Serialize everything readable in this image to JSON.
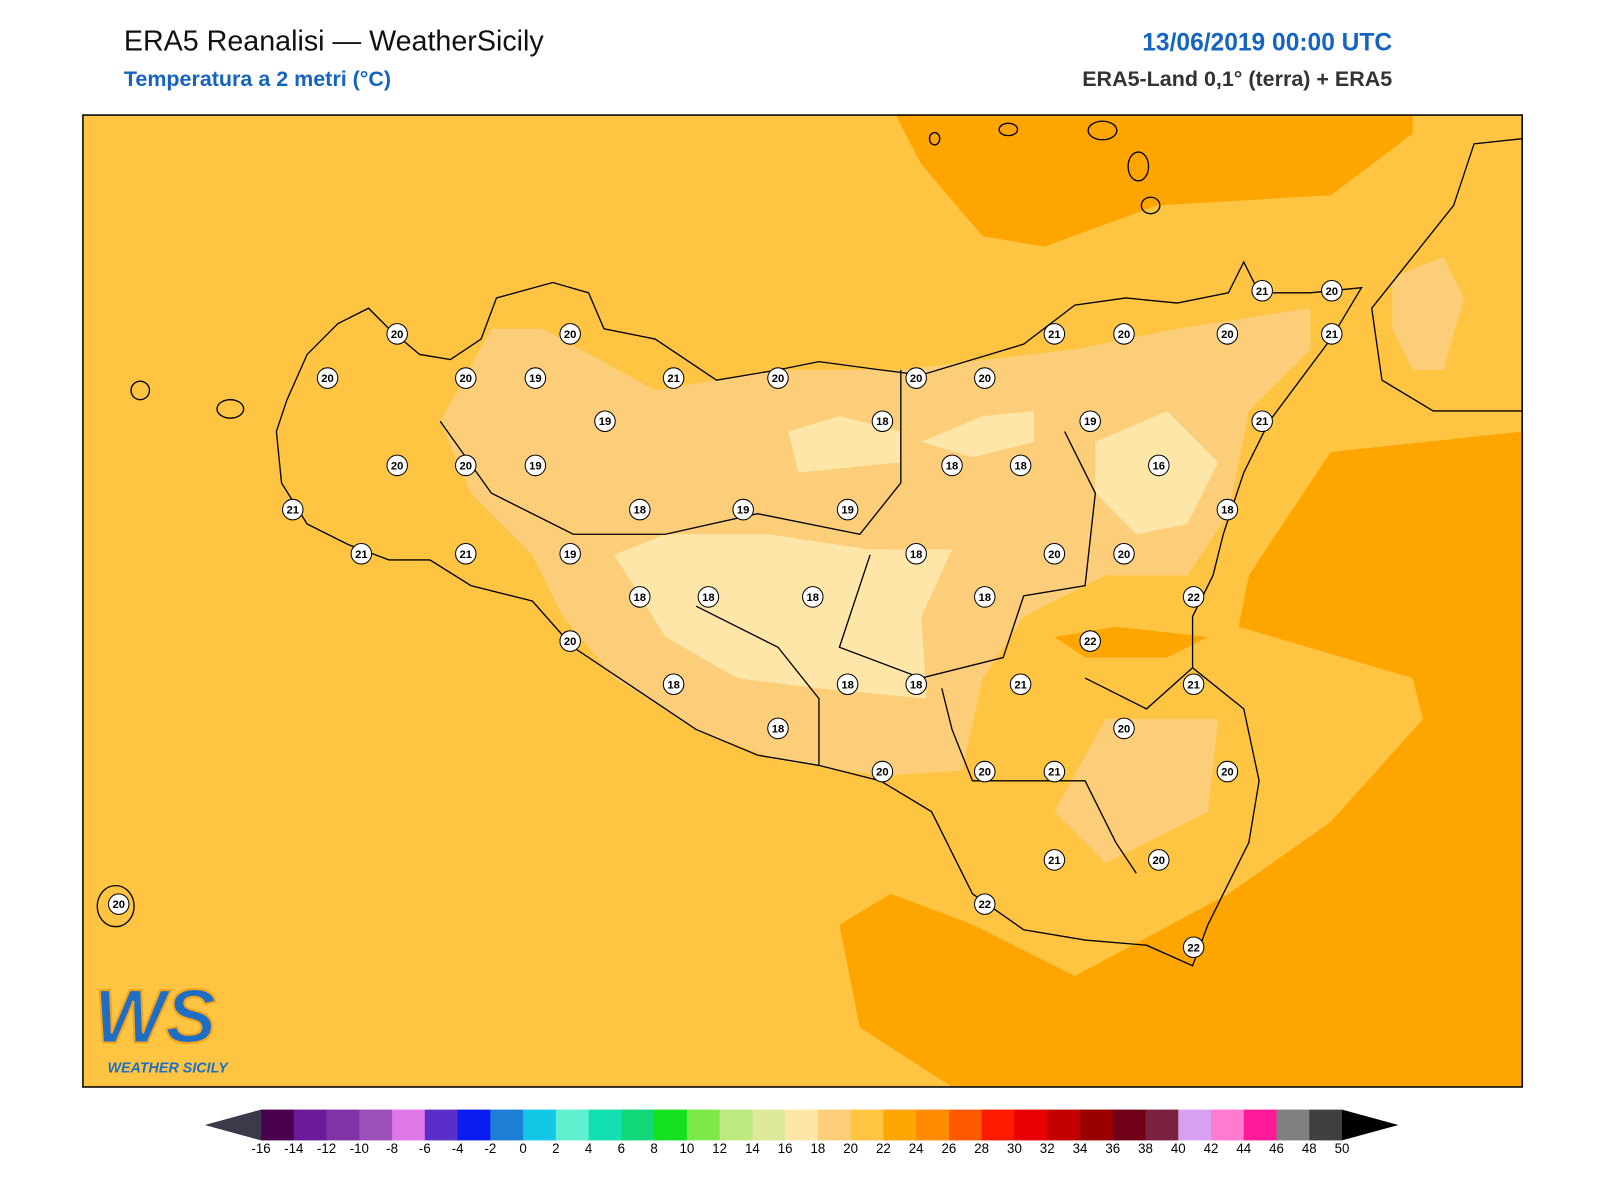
{
  "header": {
    "title": "ERA5 Reanalisi — WeatherSicily",
    "subtitle": "Temperatura a 2 metri (°C)",
    "date": "13/06/2019 00:00 UTC",
    "source": "ERA5-Land 0,1° (terra) + ERA5"
  },
  "stations": [
    20,
    20,
    20,
    20,
    19,
    21,
    20,
    19,
    20,
    20,
    19,
    21,
    21,
    21,
    19,
    18,
    19,
    19,
    18,
    20,
    20,
    18,
    18,
    21,
    20,
    20,
    21,
    20,
    21,
    21,
    19,
    16,
    18,
    18,
    20,
    20,
    22,
    18,
    18,
    18,
    18,
    20,
    22,
    18,
    18,
    18,
    21,
    21,
    18,
    20,
    20,
    20,
    21,
    20,
    21,
    20,
    22,
    22,
    20
  ],
  "colorbar": {
    "ticks": [
      -16,
      -14,
      -12,
      -10,
      -8,
      -6,
      -4,
      -2,
      0,
      2,
      4,
      6,
      8,
      10,
      12,
      14,
      16,
      18,
      20,
      22,
      24,
      26,
      28,
      30,
      32,
      34,
      36,
      38,
      40,
      42,
      44,
      46,
      48,
      50
    ],
    "colors": [
      "#4a004f",
      "#6b1a99",
      "#7e33a6",
      "#9b4fb8",
      "#de77e8",
      "#5a2ec8",
      "#0a1cf2",
      "#1f7fd6",
      "#12c8e6",
      "#5ff0d0",
      "#12e0b0",
      "#10d878",
      "#12e020",
      "#7de84a",
      "#bdea80",
      "#dde898",
      "#fee6a8",
      "#fdce7a",
      "#ffc542",
      "#ffa500",
      "#ff8c00",
      "#ff5a00",
      "#ff1a00",
      "#e60000",
      "#c40000",
      "#9a0000",
      "#700018",
      "#7a2040",
      "#d8a0f0",
      "#ff7ad0",
      "#ff1a9a",
      "#808080",
      "#404040"
    ],
    "under_color": "#3a3a4a",
    "over_color": "#000000"
  },
  "logo": {
    "mark": "WS",
    "name": "WEATHER SICILY"
  }
}
